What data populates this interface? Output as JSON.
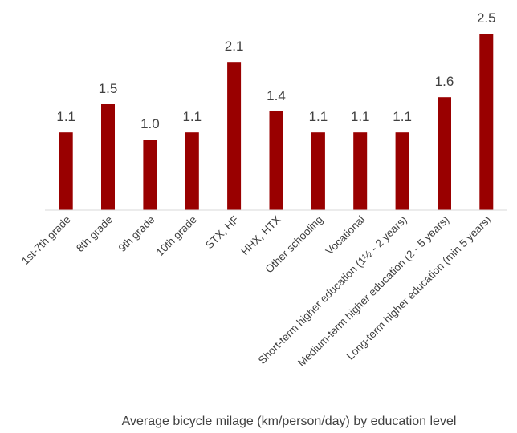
{
  "chart_data": {
    "type": "bar",
    "categories": [
      "1st-7th grade",
      "8th grade",
      "9th grade",
      "10th grade",
      "STX, HF",
      "HHX, HTX",
      "Other schooling",
      "Vocational",
      "Short-term higher education (1½ - 2 years)",
      "Medium-term higher education (2 - 5 years)",
      "Long-term higher education (min 5 years)"
    ],
    "values": [
      1.1,
      1.5,
      1.0,
      1.1,
      2.1,
      1.4,
      1.1,
      1.1,
      1.1,
      1.6,
      2.5
    ],
    "value_labels": [
      "1.1",
      "1.5",
      "1.0",
      "1.1",
      "2.1",
      "1.4",
      "1.1",
      "1.1",
      "1.1",
      "1.6",
      "2.5"
    ],
    "title": "",
    "caption": "Average bicycle milage (km/person/day) by education level",
    "xlabel": "",
    "ylabel": "",
    "ylim": [
      0,
      2.5
    ],
    "grid": false,
    "legend": "none",
    "bar_color": "#990000"
  }
}
